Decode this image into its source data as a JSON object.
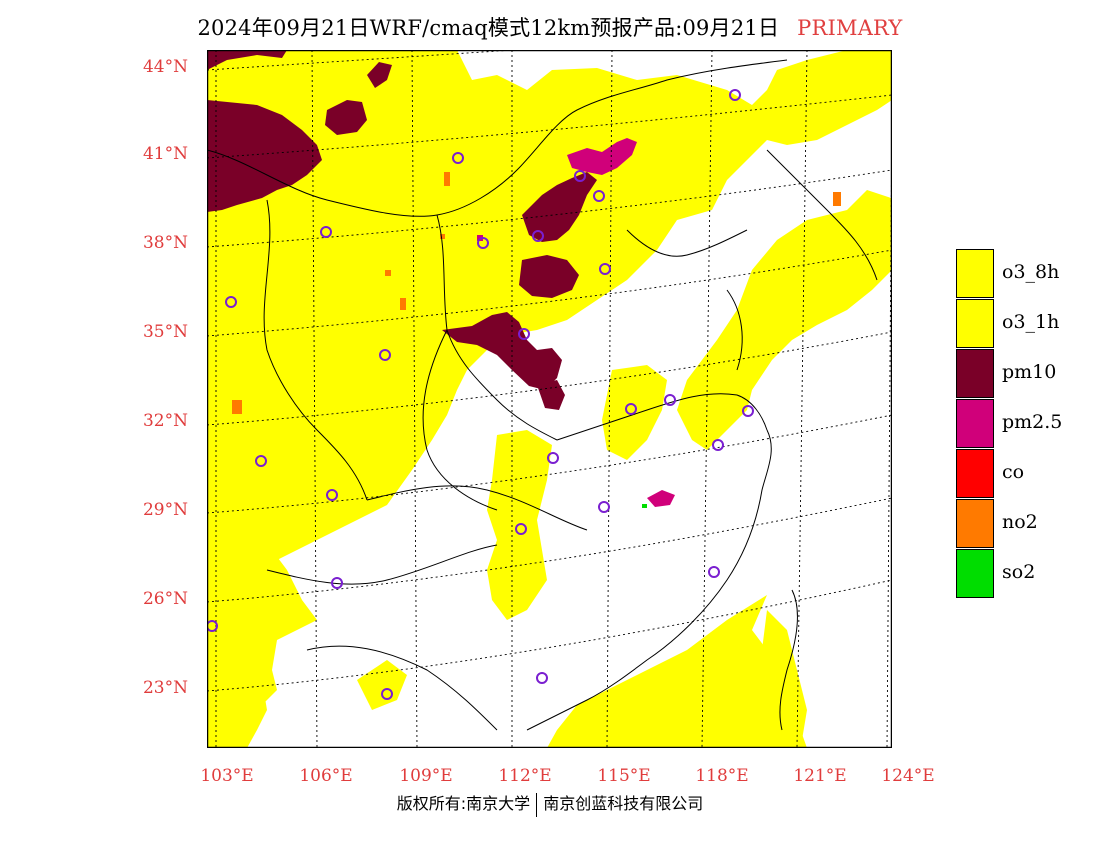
{
  "title": {
    "main": "2024年09月21日WRF/cmaq模式12km预报产品:09月21日",
    "tag": "PRIMARY"
  },
  "axes": {
    "lat_ticks": [
      "44°N",
      "41°N",
      "38°N",
      "35°N",
      "32°N",
      "29°N",
      "26°N",
      "23°N"
    ],
    "lon_ticks": [
      "103°E",
      "106°E",
      "109°E",
      "112°E",
      "115°E",
      "118°E",
      "121°E",
      "124°E"
    ]
  },
  "legend": [
    {
      "label": "o3_8h",
      "color": "#ffff00"
    },
    {
      "label": "o3_1h",
      "color": "#ffff00"
    },
    {
      "label": "pm10",
      "color": "#7a0028"
    },
    {
      "label": "pm2.5",
      "color": "#d0007a"
    },
    {
      "label": "co",
      "color": "#ff0000"
    },
    {
      "label": "no2",
      "color": "#ff7a00"
    },
    {
      "label": "so2",
      "color": "#00dd00"
    }
  ],
  "copyright": {
    "left": "版权所有:南京大学",
    "right": "南京创蓝科技有限公司"
  },
  "colors": {
    "yellow": "#ffff00",
    "pm10": "#7a0028",
    "pm25": "#d0007a",
    "no2": "#ff7a00",
    "so2": "#00dd00",
    "station": "#7a1fd0",
    "tick": "#e03c3c"
  }
}
